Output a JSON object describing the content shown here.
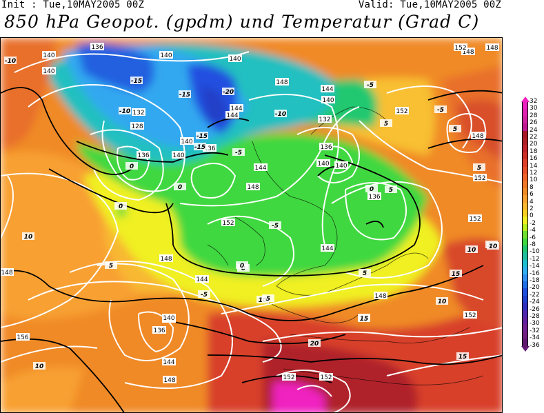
{
  "header": {
    "init": "Init : Tue,10MAY2005 00Z",
    "valid": "Valid: Tue,10MAY2005 00Z",
    "title": "850 hPa Geopot. (gpdm) und Temperatur (Grad C)"
  },
  "map": {
    "description_colors": {
      "deep_red": "#b0202a",
      "red": "#d8402a",
      "orange_red": "#e8602a",
      "orange": "#f08a28",
      "light_orange": "#f8b030",
      "yellow_orange": "#f8d020",
      "yellow": "#f0f020",
      "yellow_green": "#b8f020",
      "green": "#40d840",
      "green_light": "#60e060",
      "teal": "#20c890",
      "cyan": "#20c0e0",
      "light_blue": "#40a8f0",
      "blue": "#2070e8",
      "dark_blue": "#2040d8",
      "magenta": "#f020c0"
    },
    "geopotential_labels": [
      "136",
      "140",
      "140",
      "140",
      "132",
      "128",
      "136",
      "140",
      "136",
      "140",
      "140",
      "144",
      "148",
      "144",
      "140",
      "144",
      "132",
      "136",
      "140",
      "140",
      "136",
      "148",
      "152",
      "148",
      "144",
      "152",
      "148",
      "144",
      "148",
      "140",
      "152",
      "148",
      "152",
      "148",
      "144",
      "148",
      "140",
      "136",
      "144",
      "148",
      "156",
      "152",
      "152",
      "152",
      "152"
    ],
    "temperature_labels": [
      "-10",
      "-15",
      "-15",
      "-10",
      "-20",
      "-15",
      "-15",
      "-10",
      "-5",
      "-5",
      "-5",
      "0",
      "0",
      "0",
      "-5",
      "0",
      "5",
      "-5",
      "0",
      "5",
      "10",
      "5",
      "10",
      "5",
      "10",
      "15",
      "10",
      "15",
      "10",
      "15",
      "20",
      "15",
      "10",
      "5",
      "0",
      "5",
      "10",
      "5"
    ]
  },
  "colorbar": {
    "labels": [
      "32",
      "30",
      "28",
      "26",
      "24",
      "22",
      "20",
      "18",
      "16",
      "14",
      "12",
      "10",
      "8",
      "6",
      "4",
      "2",
      "0",
      "-2",
      "-4",
      "-6",
      "-8",
      "-10",
      "-12",
      "-14",
      "-16",
      "-18",
      "-20",
      "-22",
      "-24",
      "-26",
      "-28",
      "-30",
      "-32",
      "-34",
      "-36"
    ],
    "colors": [
      "#f020c0",
      "#e020b0",
      "#d020a0",
      "#c01890",
      "#a81828",
      "#b01e26",
      "#c0242a",
      "#d0302a",
      "#e0402a",
      "#e85028",
      "#f06428",
      "#f07828",
      "#f08c28",
      "#f8a030",
      "#f8b830",
      "#f8d020",
      "#f0f020",
      "#b8f020",
      "#70e030",
      "#40d840",
      "#20c870",
      "#20c0a0",
      "#20c0d0",
      "#30b0f0",
      "#3090f0",
      "#2070e8",
      "#2050e0",
      "#2040d0",
      "#3030c0",
      "#5028b0",
      "#6020a0",
      "#702090",
      "#702080",
      "#601870"
    ]
  }
}
